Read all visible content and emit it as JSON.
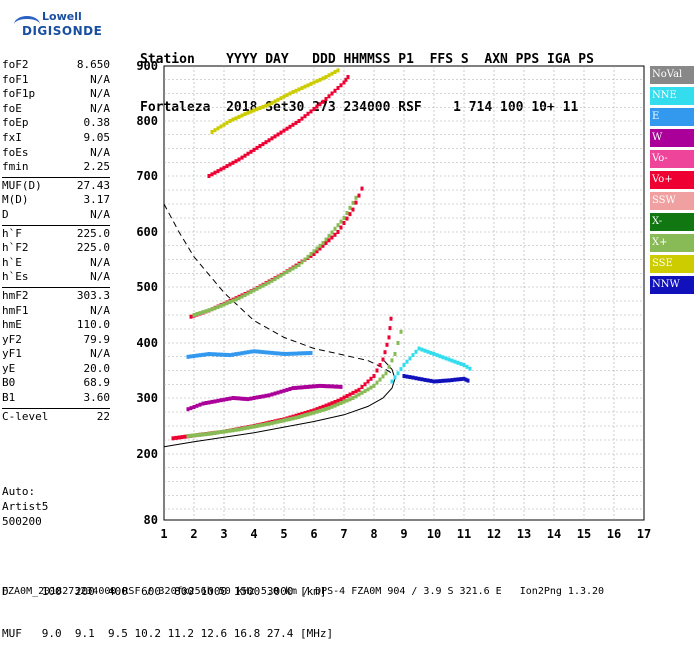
{
  "logo": {
    "line1": "Lowell",
    "line2": "DIGISONDE"
  },
  "header": {
    "row1": "Station    YYYY DAY   DDD HHMMSS P1  FFS S  AXN PPS IGA PS",
    "row2": "Fortaleza  2018 Set30 273 234000 RSF    1 714 100 10+ 11"
  },
  "params": [
    {
      "group": [
        {
          "name": "foF2",
          "value": "8.650"
        },
        {
          "name": "foF1",
          "value": "N/A"
        },
        {
          "name": "foF1p",
          "value": "N/A"
        },
        {
          "name": "foE",
          "value": "N/A"
        },
        {
          "name": "foEp",
          "value": "0.38"
        },
        {
          "name": "fxI",
          "value": "9.05"
        },
        {
          "name": "foEs",
          "value": "N/A"
        },
        {
          "name": "fmin",
          "value": "2.25"
        }
      ]
    },
    {
      "group": [
        {
          "name": "MUF(D)",
          "value": "27.43"
        },
        {
          "name": "M(D)",
          "value": "3.17"
        },
        {
          "name": "D",
          "value": "N/A"
        }
      ]
    },
    {
      "group": [
        {
          "name": "h`F",
          "value": "225.0"
        },
        {
          "name": "h`F2",
          "value": "225.0"
        },
        {
          "name": "h`E",
          "value": "N/A"
        },
        {
          "name": "h`Es",
          "value": "N/A"
        }
      ]
    },
    {
      "group": [
        {
          "name": "hmF2",
          "value": "303.3"
        },
        {
          "name": "hmF1",
          "value": "N/A"
        },
        {
          "name": "hmE",
          "value": "110.0"
        },
        {
          "name": "yF2",
          "value": "79.9"
        },
        {
          "name": "yF1",
          "value": "N/A"
        },
        {
          "name": "yE",
          "value": "20.0"
        },
        {
          "name": "B0",
          "value": "68.9"
        },
        {
          "name": "B1",
          "value": "3.60"
        }
      ]
    },
    {
      "group": [
        {
          "name": "C-level",
          "value": "22"
        }
      ]
    }
  ],
  "auto": {
    "line1": "Auto:",
    "line2": "Artist5",
    "line3": "500200"
  },
  "legend": [
    {
      "label": "NoVal",
      "color": "#888888"
    },
    {
      "label": "NNE",
      "color": "#33ddee"
    },
    {
      "label": "E",
      "color": "#3399ee"
    },
    {
      "label": "W",
      "color": "#aa0099"
    },
    {
      "label": "Vo-",
      "color": "#ee4499"
    },
    {
      "label": "Vo+",
      "color": "#ee0033"
    },
    {
      "label": "SSW",
      "color": "#f0a0a0"
    },
    {
      "label": "X-",
      "color": "#117711"
    },
    {
      "label": "X+",
      "color": "#88bb55"
    },
    {
      "label": "SSE",
      "color": "#cccc00"
    },
    {
      "label": "NNW",
      "color": "#1111bb"
    }
  ],
  "dmuf": {
    "d_row": "D     100  200  400  600  800 1000 1500 3000 [km]",
    "muf_row": "MUF   9.0  9.1  9.5 10.2 11.2 12.6 16.8 27.4 [MHz]"
  },
  "footer": "FZA0M_2018273234000.RSF / 320fx256h 50 kHz 5.0 km / DPS-4 FZA0M 904 / 3.9 S 321.6 E   Ion2Png 1.3.20",
  "chart_data": {
    "type": "scatter",
    "xlim": [
      1,
      17
    ],
    "ylim": [
      80,
      900
    ],
    "x_ticks": [
      1,
      2,
      3,
      4,
      5,
      6,
      7,
      8,
      9,
      10,
      11,
      12,
      13,
      14,
      15,
      16,
      17
    ],
    "y_ticks": [
      80,
      200,
      300,
      400,
      500,
      600,
      700,
      800,
      900
    ],
    "grid": true,
    "legend_position": "right",
    "traces": [
      {
        "name": "Vo+",
        "color": "#ee0033",
        "x": [
          1.3,
          2,
          3,
          4,
          5,
          6,
          6.8,
          7.5,
          8,
          8.3,
          8.5,
          8.6
        ],
        "y": [
          228,
          233,
          240,
          250,
          262,
          278,
          295,
          315,
          340,
          370,
          410,
          460
        ]
      },
      {
        "name": "X+",
        "color": "#88bb55",
        "x": [
          1.8,
          2.5,
          3.5,
          4.5,
          5.5,
          6.5,
          7.3,
          8,
          8.4,
          8.7,
          9.0
        ],
        "y": [
          232,
          236,
          244,
          254,
          266,
          282,
          300,
          322,
          345,
          380,
          440
        ]
      },
      {
        "name": "Vo+ 2nd hop",
        "color": "#ee0033",
        "x": [
          1.9,
          2.5,
          3,
          4,
          5,
          6,
          6.8,
          7.3,
          7.7
        ],
        "y": [
          447,
          458,
          470,
          495,
          525,
          560,
          600,
          640,
          690
        ]
      },
      {
        "name": "X+ 2nd hop",
        "color": "#88bb55",
        "x": [
          2,
          2.7,
          3.5,
          4.5,
          5.5,
          6.3,
          7,
          7.5
        ],
        "y": [
          450,
          462,
          480,
          508,
          540,
          580,
          625,
          670
        ]
      },
      {
        "name": "Vo+ 3rd hop",
        "color": "#ee0033",
        "x": [
          2.5,
          3.5,
          4.5,
          5.5,
          6.3,
          7,
          7.2
        ],
        "y": [
          700,
          730,
          765,
          800,
          835,
          870,
          885
        ]
      },
      {
        "name": "SSE",
        "color": "#cccc00",
        "x": [
          2.6,
          3.2,
          3.8,
          4.5,
          5.2,
          5.8,
          6.4,
          6.9
        ],
        "y": [
          780,
          800,
          815,
          830,
          850,
          865,
          880,
          895
        ]
      },
      {
        "name": "W",
        "color": "#aa0099",
        "x": [
          1.8,
          2.3,
          2.8,
          3.3,
          3.8,
          4.5,
          5.3,
          6.2,
          7
        ],
        "y": [
          280,
          290,
          295,
          300,
          298,
          305,
          318,
          322,
          320
        ]
      },
      {
        "name": "E",
        "color": "#3399ee",
        "x": [
          1.8,
          2.5,
          3.2,
          4,
          5,
          6
        ],
        "y": [
          375,
          380,
          378,
          385,
          380,
          382
        ]
      },
      {
        "name": "NNW",
        "color": "#1111bb",
        "x": [
          9,
          9.5,
          10,
          10.5,
          11,
          11.2
        ],
        "y": [
          340,
          335,
          330,
          332,
          335,
          330
        ]
      },
      {
        "name": "NNE",
        "color": "#33ddee",
        "x": [
          8.6,
          9,
          9.5,
          10,
          10.5,
          11,
          11.3
        ],
        "y": [
          330,
          360,
          390,
          380,
          370,
          360,
          350
        ]
      }
    ],
    "profile_solid": {
      "x": [
        1.0,
        2,
        3,
        4,
        5,
        6,
        7,
        7.8,
        8.3,
        8.6,
        8.7,
        8.6,
        8.3
      ],
      "y": [
        213,
        222,
        230,
        238,
        248,
        258,
        270,
        285,
        300,
        318,
        335,
        352,
        370
      ]
    },
    "profile_dashed": {
      "x": [
        1.0,
        1.5,
        2,
        3,
        4,
        5,
        6,
        7,
        7.8,
        8.3,
        8.6
      ],
      "y": [
        650,
        600,
        555,
        490,
        440,
        410,
        390,
        378,
        368,
        355,
        345
      ]
    }
  }
}
